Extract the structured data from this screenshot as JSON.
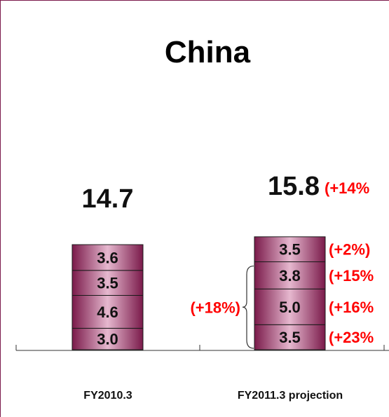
{
  "chart_data": {
    "type": "bar",
    "stacked": true,
    "title": "China",
    "categories": [
      "FY2010.3",
      "FY2011.3 projection"
    ],
    "stacks": [
      {
        "category": "FY2010.3",
        "total": "14.7",
        "segments": [
          3.0,
          4.6,
          3.5,
          3.6
        ],
        "segment_labels": [
          "3.0",
          "4.6",
          "3.5",
          "3.6"
        ]
      },
      {
        "category": "FY2011.3 projection",
        "total": "15.8",
        "total_change": "(+14%",
        "segments": [
          3.5,
          5.0,
          3.8,
          3.5
        ],
        "segment_labels": [
          "3.5",
          "5.0",
          "3.8",
          "3.5"
        ],
        "segment_changes": [
          "(+23%",
          "(+16%",
          "(+15%",
          "(+2%)"
        ]
      }
    ],
    "bracket_change": "(+18%)",
    "bracket_span_segments": 3,
    "colors": {
      "bar_dark": "#7a1a4a",
      "bar_light": "#e6b8cf",
      "annotation": "#ff0000",
      "frame": "#7a1a4a"
    },
    "grid": false,
    "legend": "none"
  }
}
